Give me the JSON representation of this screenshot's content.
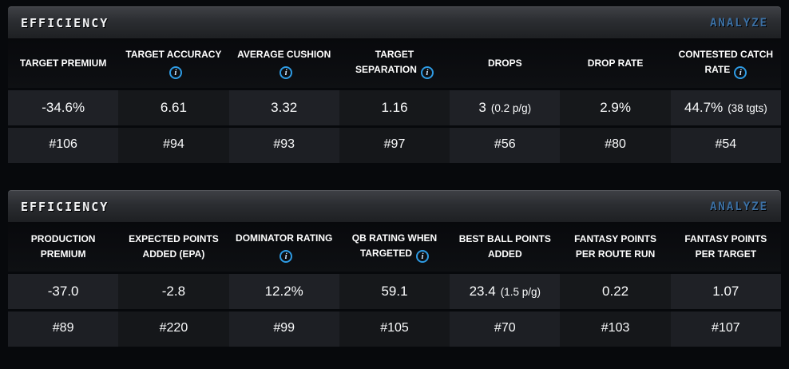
{
  "icons": {
    "info": "i"
  },
  "colors": {
    "page_bg": "#07090c",
    "accent_blue": "#2e9be4",
    "analyze_blue": "#3c70a4",
    "cell_light": "#1f2126",
    "cell_dark": "#16181b"
  },
  "tables": [
    {
      "title": "EFFICIENCY",
      "action": "ANALYZE",
      "columns": [
        {
          "label": "TARGET PREMIUM",
          "info": false
        },
        {
          "label": "TARGET ACCURACY",
          "info": true
        },
        {
          "label": "AVERAGE CUSHION",
          "info": true
        },
        {
          "label": "TARGET SEPARATION",
          "info": true
        },
        {
          "label": "DROPS",
          "info": false
        },
        {
          "label": "DROP RATE",
          "info": false
        },
        {
          "label": "CONTESTED CATCH RATE",
          "info": true
        }
      ],
      "values": [
        {
          "main": "-34.6%",
          "sub": ""
        },
        {
          "main": "6.61",
          "sub": ""
        },
        {
          "main": "3.32",
          "sub": ""
        },
        {
          "main": "1.16",
          "sub": ""
        },
        {
          "main": "3",
          "sub": "(0.2 p/g)"
        },
        {
          "main": "2.9%",
          "sub": ""
        },
        {
          "main": "44.7%",
          "sub": "(38 tgts)"
        }
      ],
      "ranks": [
        "#106",
        "#94",
        "#93",
        "#97",
        "#56",
        "#80",
        "#54"
      ]
    },
    {
      "title": "EFFICIENCY",
      "action": "ANALYZE",
      "columns": [
        {
          "label": "PRODUCTION PREMIUM",
          "info": false
        },
        {
          "label": "EXPECTED POINTS ADDED (EPA)",
          "info": false
        },
        {
          "label": "DOMINATOR RATING",
          "info": true
        },
        {
          "label": "QB RATING WHEN TARGETED",
          "info": true
        },
        {
          "label": "BEST BALL POINTS ADDED",
          "info": false
        },
        {
          "label": "FANTASY POINTS PER ROUTE RUN",
          "info": false
        },
        {
          "label": "FANTASY POINTS PER TARGET",
          "info": false
        }
      ],
      "values": [
        {
          "main": "-37.0",
          "sub": ""
        },
        {
          "main": "-2.8",
          "sub": ""
        },
        {
          "main": "12.2%",
          "sub": ""
        },
        {
          "main": "59.1",
          "sub": ""
        },
        {
          "main": "23.4",
          "sub": "(1.5 p/g)"
        },
        {
          "main": "0.22",
          "sub": ""
        },
        {
          "main": "1.07",
          "sub": ""
        }
      ],
      "ranks": [
        "#89",
        "#220",
        "#99",
        "#105",
        "#70",
        "#103",
        "#107"
      ]
    }
  ]
}
